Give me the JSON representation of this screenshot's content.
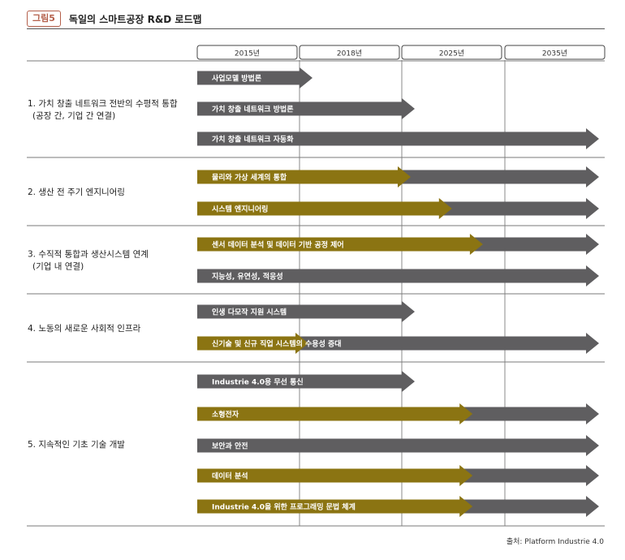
{
  "figure": {
    "label": "그림5",
    "title": "독일의 스마트공장 R&D 로드맵",
    "source": "출처: Platform Industrie 4.0"
  },
  "colors": {
    "gray_bar": "#5f5e60",
    "gold_bar": "#8b7412",
    "text_on_bar": "#ffffff",
    "divider": "#7a7a7a",
    "grid": "#6b6b6b",
    "badge": "#b45f4a"
  },
  "chart_data": {
    "type": "roadmap",
    "title": "독일의 스마트공장 R&D 로드맵",
    "timeline": [
      "2015년",
      "2018년",
      "2025년",
      "2035년"
    ],
    "x_domain": [
      2015,
      2035
    ],
    "source": "출처: Platform Industrie 4.0",
    "groups": [
      {
        "label": [
          "1. 가치 창출 네트워크 전반의 수평적 통합",
          "(공장 간, 기업 간 연결)"
        ],
        "items": [
          {
            "label": "사업모델 방법론",
            "end": 2018,
            "gold_end": null
          },
          {
            "label": "가치 창출 네트워크 방법론",
            "end": 2025,
            "gold_end": null
          },
          {
            "label": "가치 창출 네트워크 자동화",
            "end": 2035,
            "gold_end": null
          }
        ]
      },
      {
        "label": [
          "2. 생산 전 주기 엔지니어링"
        ],
        "items": [
          {
            "label": "물리와 가상 세계의 통합",
            "end": 2035,
            "gold_end": 2025
          },
          {
            "label": "시스템 엔지니어링",
            "end": 2035,
            "gold_end": 2029
          }
        ]
      },
      {
        "label": [
          "3. 수직적 통합과 생산시스템 연계",
          "(기업 내 연결)"
        ],
        "items": [
          {
            "label": "센서 데이터 분석 및 데이터 기반 공정 제어",
            "end": 2035,
            "gold_end": 2032
          },
          {
            "label": "지능성, 유연성, 적응성",
            "end": 2035,
            "gold_end": null
          }
        ]
      },
      {
        "label": [
          "4. 노동의 새로운 사회적 인프라"
        ],
        "items": [
          {
            "label": "인생 다모작 지원 시스템",
            "end": 2025,
            "gold_end": null
          },
          {
            "label": "신기술 및 신규 직업 시스템의 수용성 증대",
            "end": 2035,
            "gold_end": 2018
          }
        ]
      },
      {
        "label": [
          "5. 지속적인 기초 기술 개발"
        ],
        "items": [
          {
            "label": "Industrie 4.0용 무선 통신",
            "end": 2025,
            "gold_end": null
          },
          {
            "label": "소형전자",
            "end": 2035,
            "gold_end": 2031
          },
          {
            "label": "보안과 안전",
            "end": 2035,
            "gold_end": null
          },
          {
            "label": "데이터 분석",
            "end": 2035,
            "gold_end": 2031
          },
          {
            "label": "Industrie 4.0을 위한 프로그래밍 문법 체계",
            "end": 2035,
            "gold_end": 2031
          }
        ]
      }
    ]
  }
}
